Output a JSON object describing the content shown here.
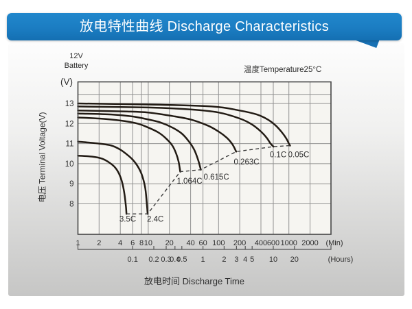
{
  "banner": {
    "title": "放电特性曲线 Discharge Characteristics",
    "color": "#1b7dc2"
  },
  "annotations": {
    "battery_line1": "12V",
    "battery_line2": "Battery",
    "temperature": "温度Temperature25°C",
    "y_unit": "(V)",
    "y_axis_label": "电压 Terminal Voltage(V)",
    "x_axis_label": "放电时间 Discharge Time"
  },
  "chart_data": {
    "type": "line",
    "title": "放电特性曲线 Discharge Characteristics",
    "subtitle": "12V Battery, 温度Temperature25°C",
    "xlabel": "放电时间 Discharge Time",
    "ylabel": "电压 Terminal Voltage(V)",
    "x_scale": "log",
    "x_range_minutes": [
      1,
      3980
    ],
    "y_range": [
      6.5,
      14.0
    ],
    "grid": true,
    "x_ticks_minutes": [
      1,
      2,
      4,
      6,
      8,
      10,
      20,
      40,
      60,
      100,
      200,
      400,
      600,
      1000,
      2000
    ],
    "x_unit_minutes_label": "(Min)",
    "x_ticks_hours": [
      0.1,
      0.2,
      0.3,
      0.4,
      0.5,
      1,
      2,
      3,
      4,
      5,
      10,
      20
    ],
    "x_unit_hours_label": "(Hours)",
    "y_ticks": [
      8,
      9,
      10,
      11,
      12,
      13
    ],
    "y_extra_gridline": 13.45,
    "series": [
      {
        "name": "0.05C",
        "points": [
          [
            1,
            13.0
          ],
          [
            10,
            12.95
          ],
          [
            80,
            12.85
          ],
          [
            200,
            12.65
          ],
          [
            350,
            12.45
          ],
          [
            500,
            12.2
          ],
          [
            650,
            11.9
          ],
          [
            800,
            11.55
          ],
          [
            920,
            11.25
          ],
          [
            1000,
            11.0
          ],
          [
            1040,
            10.9
          ]
        ]
      },
      {
        "name": "0.1C",
        "points": [
          [
            1,
            12.85
          ],
          [
            10,
            12.8
          ],
          [
            40,
            12.7
          ],
          [
            100,
            12.55
          ],
          [
            200,
            12.25
          ],
          [
            300,
            11.95
          ],
          [
            400,
            11.6
          ],
          [
            480,
            11.3
          ],
          [
            550,
            11.0
          ],
          [
            604,
            10.85
          ]
        ]
      },
      {
        "name": "0.263C",
        "points": [
          [
            1,
            12.65
          ],
          [
            5,
            12.6
          ],
          [
            10,
            12.55
          ],
          [
            20,
            12.4
          ],
          [
            40,
            12.2
          ],
          [
            70,
            11.9
          ],
          [
            100,
            11.6
          ],
          [
            130,
            11.3
          ],
          [
            155,
            11.0
          ],
          [
            170,
            10.75
          ],
          [
            178,
            10.6
          ]
        ]
      },
      {
        "name": "0.615C",
        "points": [
          [
            1,
            12.5
          ],
          [
            3,
            12.45
          ],
          [
            6,
            12.35
          ],
          [
            10,
            12.2
          ],
          [
            15,
            12.05
          ],
          [
            22,
            11.8
          ],
          [
            30,
            11.5
          ],
          [
            38,
            11.1
          ],
          [
            45,
            10.7
          ],
          [
            51,
            10.2
          ],
          [
            56,
            9.7
          ]
        ]
      },
      {
        "name": "1.064C",
        "points": [
          [
            1,
            12.3
          ],
          [
            2,
            12.25
          ],
          [
            4,
            12.15
          ],
          [
            7,
            12.0
          ],
          [
            10,
            11.8
          ],
          [
            14,
            11.55
          ],
          [
            18,
            11.25
          ],
          [
            22,
            10.9
          ],
          [
            25,
            10.5
          ],
          [
            27,
            10.1
          ],
          [
            28.5,
            9.6
          ]
        ]
      },
      {
        "name": "2.4C",
        "points": [
          [
            1,
            11.1
          ],
          [
            2,
            11.0
          ],
          [
            3,
            10.9
          ],
          [
            4,
            10.7
          ],
          [
            5,
            10.45
          ],
          [
            6,
            10.2
          ],
          [
            7,
            9.9
          ],
          [
            8,
            9.5
          ],
          [
            9,
            8.85
          ],
          [
            9.5,
            8.1
          ],
          [
            9.8,
            7.5
          ]
        ]
      },
      {
        "name": "3.5C",
        "points": [
          [
            1,
            10.4
          ],
          [
            1.6,
            10.35
          ],
          [
            2.2,
            10.25
          ],
          [
            2.8,
            10.05
          ],
          [
            3.4,
            9.8
          ],
          [
            3.9,
            9.45
          ],
          [
            4.3,
            9.0
          ],
          [
            4.6,
            8.45
          ],
          [
            4.8,
            7.9
          ],
          [
            4.9,
            7.5
          ]
        ]
      }
    ],
    "series_labels": [
      {
        "text": "3.5C",
        "t": 5.1,
        "v": 7.25
      },
      {
        "text": "2.4C",
        "t": 12.6,
        "v": 7.25
      },
      {
        "text": "1.064C",
        "t": 38.6,
        "v": 9.15
      },
      {
        "text": "0.615C",
        "t": 93,
        "v": 9.35
      },
      {
        "text": "0.263C",
        "t": 250,
        "v": 10.1
      },
      {
        "text": "0.1C",
        "t": 703,
        "v": 10.45
      },
      {
        "text": "0.05C",
        "t": 1380,
        "v": 10.45
      }
    ],
    "cutoff_dashed_line": {
      "style": "dashed",
      "points": [
        [
          4.9,
          7.5
        ],
        [
          9.8,
          7.5
        ],
        [
          28.5,
          9.6
        ],
        [
          56,
          9.7
        ],
        [
          178,
          10.6
        ],
        [
          604,
          10.85
        ],
        [
          1040,
          10.9
        ]
      ]
    },
    "colors": {
      "curve": "#221b14",
      "grid": "#909090",
      "border": "#454545",
      "plot_bg": "#f6f5f1",
      "text": "#2e2e2e",
      "banner": "#1b7dc2"
    }
  }
}
